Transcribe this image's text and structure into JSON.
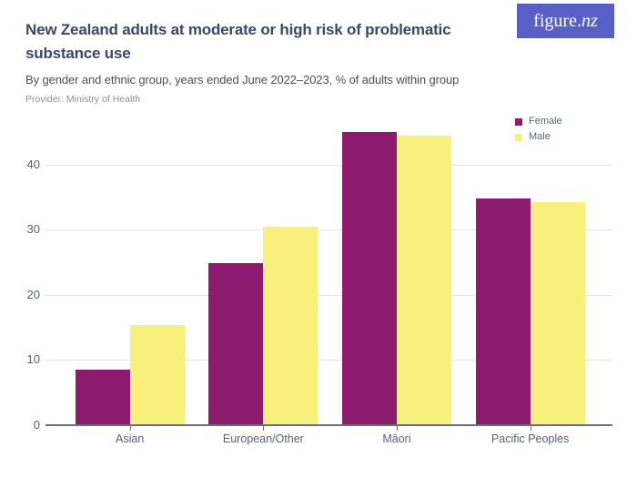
{
  "header": {
    "provider": "Provider: Ministry of Health",
    "logo_regular": "figure.",
    "logo_italic": "nz",
    "logo_bg_color": "#585FC7"
  },
  "chart_data": {
    "type": "bar",
    "title": "New Zealand adults at moderate or high risk of problematic substance use",
    "subtitle": "By gender and ethnic group, years ended June 2022–2023, % of adults within group",
    "categories": [
      "Asian",
      "European/Other",
      "Māori",
      "Pacific Peoples"
    ],
    "series": [
      {
        "name": "Female",
        "color": "#8C1A6E",
        "values": [
          8.5,
          24.8,
          45.0,
          34.7
        ]
      },
      {
        "name": "Male",
        "color": "#F8F07D",
        "values": [
          15.4,
          30.4,
          44.4,
          34.2
        ]
      }
    ],
    "yticks": [
      0,
      10,
      20,
      30,
      40
    ],
    "ytick_labels": [
      "0",
      "10",
      "20",
      "30",
      "40"
    ],
    "ylim": [
      0,
      47
    ],
    "grid": true,
    "legend_position": "top-right",
    "xlabel": "",
    "ylabel": ""
  },
  "colors": {
    "title_text": "#35496B",
    "subtitle_text": "#4E4E4E",
    "provider_text": "#8F8F8F",
    "axis_label_text": "#53617C",
    "legend_text": "#5F6672",
    "gridline": "#E4E4E4",
    "axis_line": "#6E6E6E",
    "female_bar": "#8C1A6E",
    "male_bar": "#F8F07D"
  }
}
